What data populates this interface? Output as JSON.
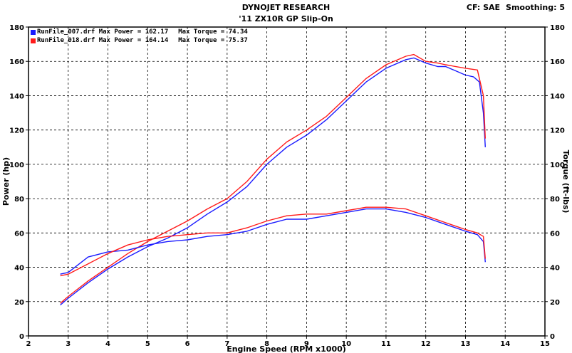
{
  "header": {
    "title": "DYNOJET RESEARCH",
    "subtitle": "'11 ZX10R GP Slip-On",
    "cf_label": "CF: SAE",
    "smoothing_label": "Smoothing: 5"
  },
  "legend": [
    {
      "file": "RunFile_007.drf",
      "power_text": "Max Power = 162.17",
      "torque_text": "Max Torque = 74.34",
      "color": "#1a1aff"
    },
    {
      "file": "RunFile_018.drf",
      "power_text": "Max Power = 164.14",
      "torque_text": "Max Torque = 75.37",
      "color": "#ff1a1a"
    }
  ],
  "chart_data": {
    "type": "line",
    "title": "DYNOJET RESEARCH",
    "subtitle": "'11 ZX10R GP Slip-On",
    "xlabel": "Engine Speed (RPM x1000)",
    "ylabel": "Power (hp)",
    "y2label": "Torque (ft-lbs)",
    "xlim": [
      2,
      15
    ],
    "ylim": [
      0,
      180
    ],
    "y2lim": [
      0,
      180
    ],
    "x_ticks": [
      2,
      3,
      4,
      5,
      6,
      7,
      8,
      9,
      10,
      11,
      12,
      13,
      14,
      15
    ],
    "y_ticks": [
      0,
      20,
      40,
      60,
      80,
      100,
      120,
      140,
      160,
      180
    ],
    "grid": true,
    "legend_position": "top-left",
    "series": [
      {
        "name": "RunFile_007.drf",
        "quantity": "power",
        "color": "#1a1aff",
        "x": [
          2.8,
          3.0,
          3.5,
          4.0,
          4.5,
          5.0,
          5.5,
          6.0,
          6.5,
          7.0,
          7.5,
          8.0,
          8.5,
          9.0,
          9.5,
          10.0,
          10.5,
          11.0,
          11.5,
          11.7,
          12.0,
          12.3,
          12.5,
          13.0,
          13.2,
          13.35,
          13.45,
          13.5
        ],
        "y": [
          18,
          22,
          31,
          39,
          46,
          52,
          57,
          63,
          71,
          78,
          87,
          100,
          110,
          117,
          126,
          137,
          148,
          156,
          161,
          162,
          159,
          157,
          157,
          152,
          151,
          148,
          130,
          110
        ]
      },
      {
        "name": "RunFile_018.drf",
        "quantity": "power",
        "color": "#ff1a1a",
        "x": [
          2.8,
          3.0,
          3.5,
          4.0,
          4.5,
          5.0,
          5.5,
          6.0,
          6.5,
          7.0,
          7.5,
          8.0,
          8.5,
          9.0,
          9.5,
          10.0,
          10.5,
          11.0,
          11.5,
          11.7,
          12.0,
          12.3,
          12.5,
          13.0,
          13.3,
          13.45,
          13.5
        ],
        "y": [
          19,
          23,
          32,
          40,
          48,
          55,
          61,
          67,
          74,
          80,
          90,
          103,
          113,
          120,
          128,
          139,
          150,
          158,
          163,
          164,
          160,
          159,
          158,
          156,
          155,
          140,
          115
        ]
      },
      {
        "name": "RunFile_007.drf",
        "quantity": "torque",
        "color": "#1a1aff",
        "x": [
          2.8,
          3.0,
          3.5,
          4.0,
          4.5,
          5.0,
          5.5,
          6.0,
          6.5,
          7.0,
          7.5,
          8.0,
          8.5,
          9.0,
          9.5,
          10.0,
          10.5,
          11.0,
          11.5,
          12.0,
          12.5,
          13.0,
          13.3,
          13.45,
          13.5
        ],
        "y": [
          36,
          37,
          46,
          49,
          50,
          53,
          55,
          56,
          58,
          59,
          61,
          65,
          68,
          68,
          70,
          72,
          74,
          74,
          72,
          69,
          65,
          61,
          59,
          55,
          43
        ]
      },
      {
        "name": "RunFile_018.drf",
        "quantity": "torque",
        "color": "#ff1a1a",
        "x": [
          2.8,
          3.0,
          3.5,
          4.0,
          4.5,
          5.0,
          5.5,
          6.0,
          6.5,
          7.0,
          7.5,
          8.0,
          8.5,
          9.0,
          9.5,
          10.0,
          10.5,
          11.0,
          11.5,
          12.0,
          12.5,
          13.0,
          13.3,
          13.45,
          13.5
        ],
        "y": [
          35,
          36,
          42,
          48,
          53,
          56,
          58,
          59,
          60,
          60,
          63,
          67,
          70,
          71,
          71,
          73,
          75,
          75,
          74,
          70,
          66,
          62,
          60,
          58,
          45
        ]
      }
    ]
  }
}
